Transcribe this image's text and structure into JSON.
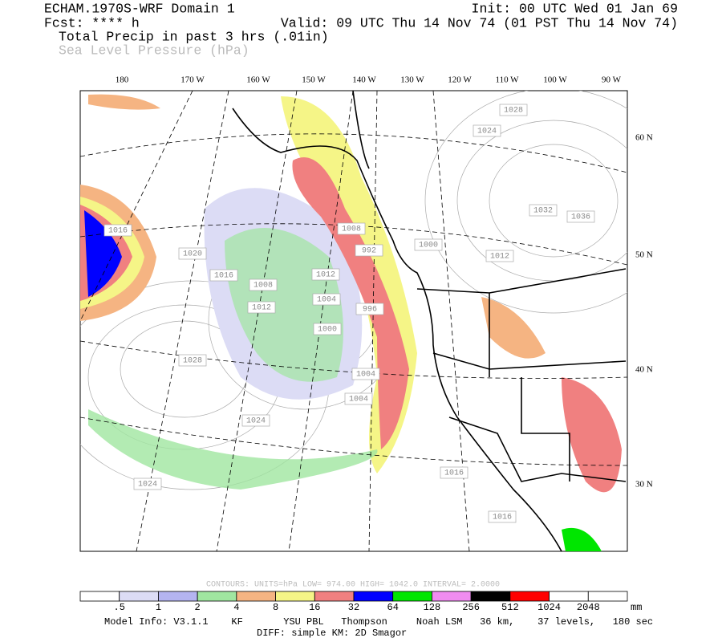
{
  "header": {
    "title": "ECHAM.1970S-WRF Domain 1",
    "init": "Init: 00 UTC Wed 01 Jan 69",
    "fcst": "Fcst: **** h",
    "valid": "Valid: 09 UTC Thu 14 Nov 74 (01 PST Thu 14 Nov 74)",
    "field_primary": "Total Precip in past 3 hrs (.01in)",
    "field_secondary": "Sea Level Pressure (hPa)"
  },
  "map": {
    "lon_labels": [
      "180",
      "170 W",
      "160 W",
      "150 W",
      "140 W",
      "130 W",
      "120 W",
      "110 W",
      "100 W",
      "90 W"
    ],
    "lat_labels": [
      "60 N",
      "50 N",
      "40 N",
      "30 N"
    ],
    "contour_labels": [
      "1028",
      "1024",
      "1032",
      "1036",
      "1000",
      "1012",
      "1016",
      "1020",
      "1016",
      "1008",
      "1012",
      "1004",
      "1000",
      "996",
      "992",
      "1004",
      "1028",
      "1024",
      "1024",
      "1016",
      "1016",
      "1012",
      "1008",
      "1004"
    ]
  },
  "contours_info": "CONTOURS:  UNITS=hPa  LOW=  974.00   HIGH=  1042.0   INTERVAL=   2.0000",
  "colorbar": {
    "labels": [
      ".5",
      "1",
      "2",
      "4",
      "8",
      "16",
      "32",
      "64",
      "128",
      "256",
      "512",
      "1024",
      "2048"
    ],
    "unit": "mm",
    "colors": [
      "#ffffff",
      "#dcdcf5",
      "#b4b4f0",
      "#a0e6a0",
      "#f5b482",
      "#f5f587",
      "#f08080",
      "#0000ff",
      "#00e600",
      "#f08cf0",
      "#000000",
      "#ff0000",
      "#ffffff",
      "#ffffff"
    ]
  },
  "footer": {
    "model_info": "Model Info: V3.1.1    KF       YSU PBL   Thompson     Noah LSM   36 km,    37 levels,   180 sec",
    "diff": "DIFF: simple KM: 2D Smagor"
  }
}
